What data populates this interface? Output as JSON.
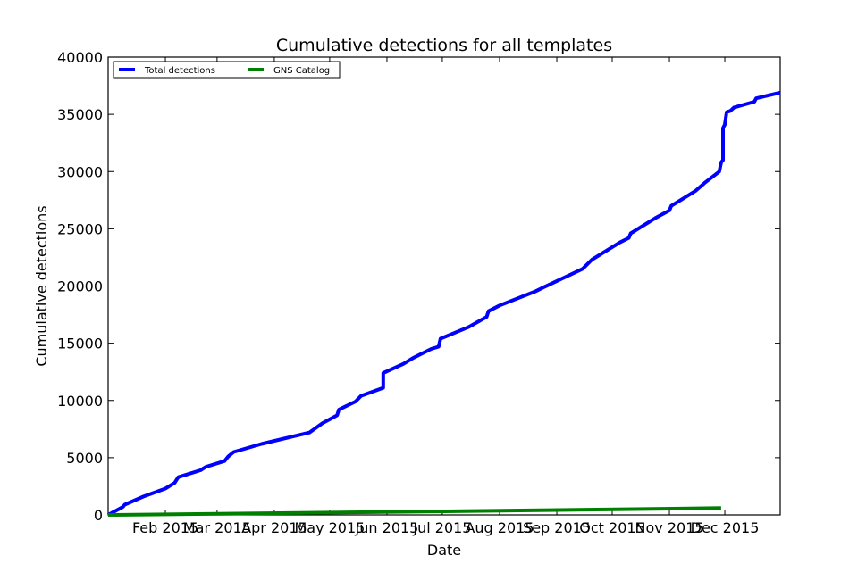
{
  "chart_data": {
    "type": "line",
    "title": "Cumulative detections for all templates",
    "xlabel": "Date",
    "ylabel": "Cumulative detections",
    "xlim": [
      "2015-01-01",
      "2015-12-31"
    ],
    "ylim": [
      0,
      40000
    ],
    "yticks": [
      0,
      5000,
      10000,
      15000,
      20000,
      25000,
      30000,
      35000,
      40000
    ],
    "xticks": [
      {
        "date": "2015-02-01",
        "label": "Feb 2015"
      },
      {
        "date": "2015-03-01",
        "label": "Mar 2015"
      },
      {
        "date": "2015-04-01",
        "label": "Apr 2015"
      },
      {
        "date": "2015-05-01",
        "label": "May 2015"
      },
      {
        "date": "2015-06-01",
        "label": "Jun 2015"
      },
      {
        "date": "2015-07-01",
        "label": "Jul 2015"
      },
      {
        "date": "2015-08-01",
        "label": "Aug 2015"
      },
      {
        "date": "2015-09-01",
        "label": "Sep 2015"
      },
      {
        "date": "2015-10-01",
        "label": "Oct 2015"
      },
      {
        "date": "2015-11-01",
        "label": "Nov 2015"
      },
      {
        "date": "2015-12-01",
        "label": "Dec 2015"
      }
    ],
    "grid": false,
    "legend_position": "top-left",
    "series": [
      {
        "name": "Total detections",
        "color": "#0000ff",
        "points": [
          [
            "2015-01-01",
            0
          ],
          [
            "2015-01-09",
            700
          ],
          [
            "2015-01-10",
            900
          ],
          [
            "2015-01-20",
            1600
          ],
          [
            "2015-02-01",
            2300
          ],
          [
            "2015-02-06",
            2800
          ],
          [
            "2015-02-08",
            3300
          ],
          [
            "2015-02-20",
            3900
          ],
          [
            "2015-02-23",
            4200
          ],
          [
            "2015-03-05",
            4700
          ],
          [
            "2015-03-07",
            5100
          ],
          [
            "2015-03-10",
            5500
          ],
          [
            "2015-03-25",
            6200
          ],
          [
            "2015-04-20",
            7200
          ],
          [
            "2015-04-27",
            8000
          ],
          [
            "2015-05-05",
            8700
          ],
          [
            "2015-05-06",
            9200
          ],
          [
            "2015-05-15",
            9900
          ],
          [
            "2015-05-18",
            10400
          ],
          [
            "2015-05-30",
            11100
          ],
          [
            "2015-05-30",
            12400
          ],
          [
            "2015-06-10",
            13200
          ],
          [
            "2015-06-15",
            13700
          ],
          [
            "2015-06-25",
            14500
          ],
          [
            "2015-06-29",
            14700
          ],
          [
            "2015-06-30",
            15400
          ],
          [
            "2015-07-15",
            16400
          ],
          [
            "2015-07-25",
            17300
          ],
          [
            "2015-07-26",
            17800
          ],
          [
            "2015-08-01",
            18300
          ],
          [
            "2015-08-20",
            19500
          ],
          [
            "2015-08-25",
            19900
          ],
          [
            "2015-09-15",
            21500
          ],
          [
            "2015-09-20",
            22300
          ],
          [
            "2015-10-05",
            23800
          ],
          [
            "2015-10-10",
            24200
          ],
          [
            "2015-10-11",
            24600
          ],
          [
            "2015-10-20",
            25500
          ],
          [
            "2015-10-25",
            26000
          ],
          [
            "2015-11-01",
            26600
          ],
          [
            "2015-11-02",
            27000
          ],
          [
            "2015-11-15",
            28300
          ],
          [
            "2015-11-20",
            29000
          ],
          [
            "2015-11-28",
            30000
          ],
          [
            "2015-11-29",
            30800
          ],
          [
            "2015-11-30",
            31000
          ],
          [
            "2015-11-30",
            33800
          ],
          [
            "2015-12-01",
            34100
          ],
          [
            "2015-12-02",
            35200
          ],
          [
            "2015-12-04",
            35300
          ],
          [
            "2015-12-06",
            35600
          ],
          [
            "2015-12-17",
            36100
          ],
          [
            "2015-12-18",
            36400
          ],
          [
            "2015-12-31",
            36900
          ]
        ]
      },
      {
        "name": "GNS Catalog",
        "color": "#008000",
        "points": [
          [
            "2015-01-01",
            0
          ],
          [
            "2015-05-30",
            250
          ],
          [
            "2015-11-29",
            600
          ]
        ]
      }
    ]
  }
}
